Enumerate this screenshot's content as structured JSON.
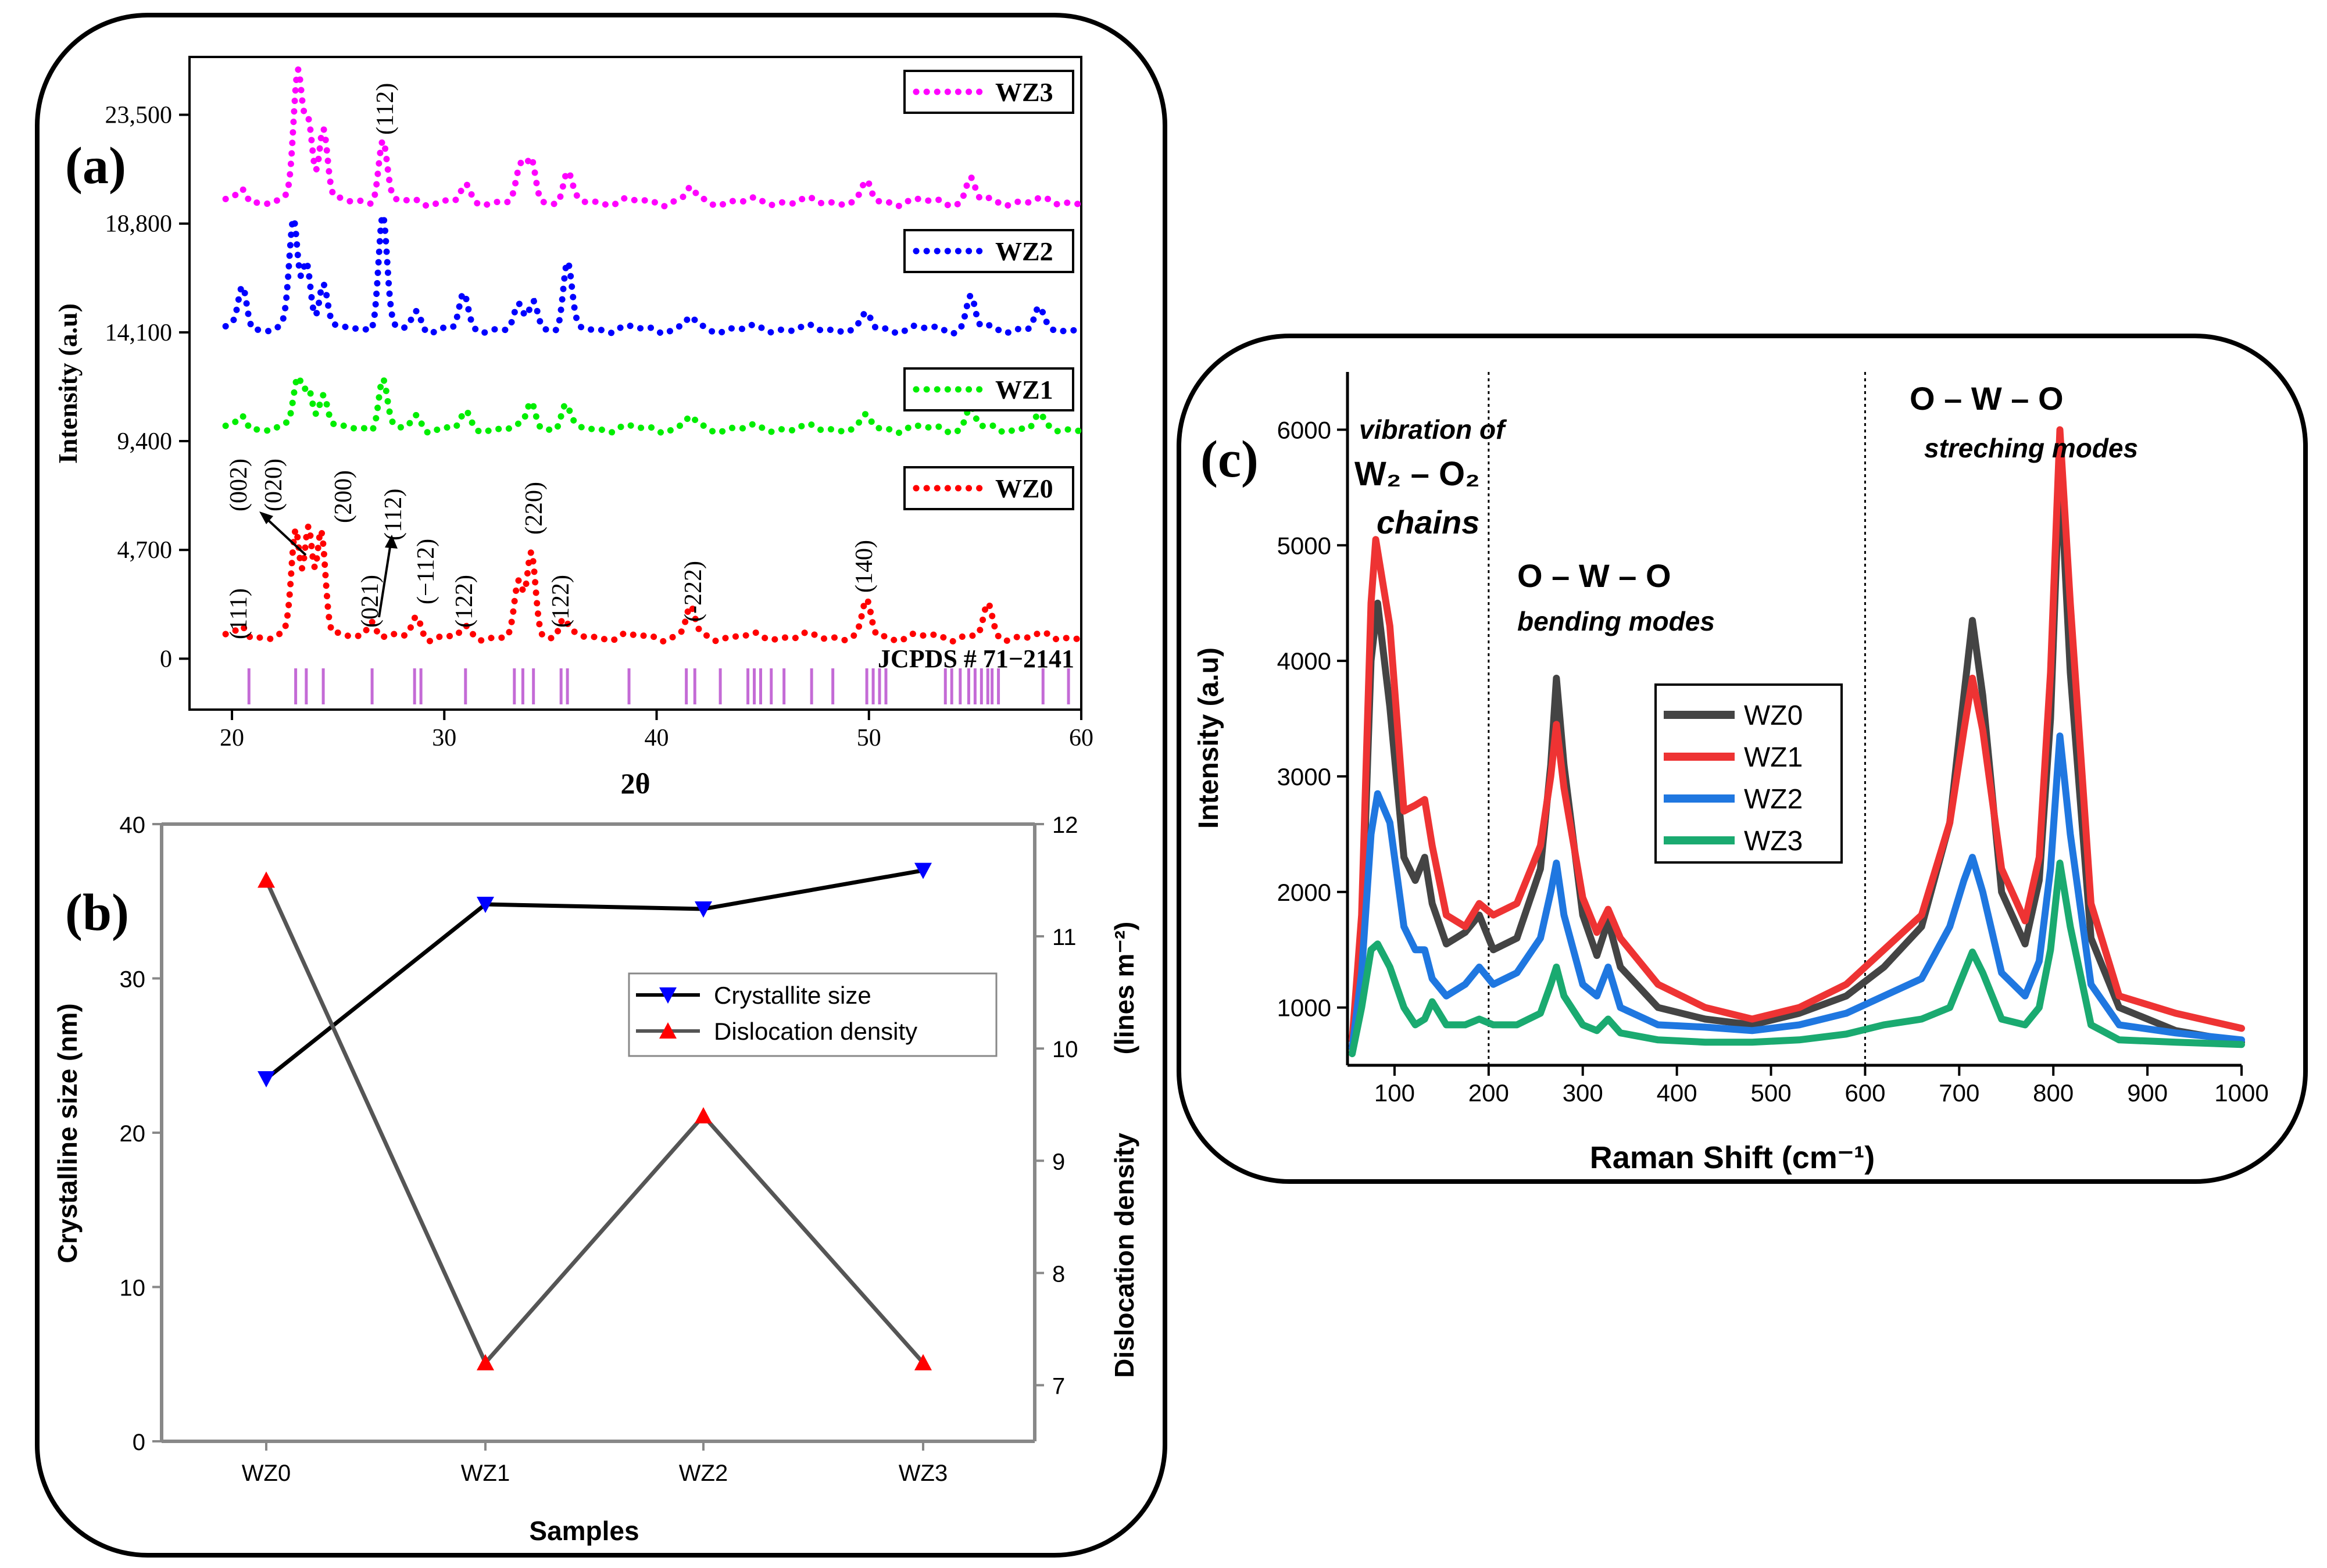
{
  "panels": {
    "a": {
      "label": "(a)",
      "ylabel": "Intensity (a.u)",
      "xlabel": "2θ",
      "reference_label": "JCPDS # 71−2141",
      "x_ticks": [
        20,
        30,
        40,
        50,
        60
      ],
      "y_ticks": [
        0,
        4700,
        9400,
        14100,
        18800,
        23500
      ],
      "y_tick_labels": [
        "0",
        "4,700",
        "9,400",
        "14,100",
        "18,800",
        "23,500"
      ],
      "legend": [
        {
          "name": "WZ3",
          "color": "#ff00ff"
        },
        {
          "name": "WZ2",
          "color": "#0000ff"
        },
        {
          "name": "WZ1",
          "color": "#00ee00"
        },
        {
          "name": "WZ0",
          "color": "#ff0000"
        }
      ],
      "peak_labels": [
        "(111)",
        "(002)",
        "(020)",
        "(200)",
        "(021)",
        "(112)",
        "(−112)",
        "(122)",
        "(220)",
        "(122)",
        "(-222)",
        "(140)"
      ],
      "wz3_peak_label": "(112)"
    },
    "b": {
      "label": "(b)",
      "ylabel_left": "Crystalline size (nm)",
      "ylabel_right": "Dislocation density",
      "ylabel_right_unit": "(lines m⁻²)",
      "xlabel": "Samples",
      "left_ticks": [
        0,
        10,
        20,
        30,
        40
      ],
      "right_ticks": [
        7,
        8,
        9,
        10,
        11,
        12
      ],
      "legend": [
        {
          "name": "Crystallite size",
          "line": "#000000",
          "marker": "#0000ff"
        },
        {
          "name": "Dislocation density",
          "line": "#555555",
          "marker": "#ff0000"
        }
      ]
    },
    "c": {
      "label": "(c)",
      "ylabel": "Intensity (a.u)",
      "xlabel": "Raman Shift (cm⁻¹)",
      "x_ticks": [
        100,
        200,
        300,
        400,
        500,
        600,
        700,
        800,
        900,
        1000
      ],
      "y_ticks": [
        1000,
        2000,
        3000,
        4000,
        5000,
        6000
      ],
      "legend": [
        {
          "name": "WZ0",
          "color": "#444444"
        },
        {
          "name": "WZ1",
          "color": "#ee3333"
        },
        {
          "name": "WZ2",
          "color": "#1f77e0"
        },
        {
          "name": "WZ3",
          "color": "#1aaa70"
        }
      ],
      "annotations": {
        "vib_line1": "vibration of",
        "vib_line2": "W₂ – O₂",
        "vib_line3": "chains",
        "bend_title": "O – W – O",
        "bend_sub": "bending modes",
        "str_title": "O – W – O",
        "str_sub": "streching modes"
      },
      "dividers": [
        200,
        600
      ]
    }
  },
  "chart_data": [
    {
      "type": "line",
      "panel": "a",
      "xlabel": "2θ",
      "ylabel": "Intensity (a.u)",
      "xlim": [
        18,
        60
      ],
      "ylim": [
        -2200,
        26000
      ],
      "series": [
        {
          "name": "WZ0",
          "offset": 0,
          "peaks": [
            [
              20.5,
              500
            ],
            [
              23.0,
              4600
            ],
            [
              23.6,
              4700
            ],
            [
              24.2,
              4700
            ],
            [
              26.6,
              800
            ],
            [
              28.7,
              800
            ],
            [
              31.0,
              300
            ],
            [
              33.5,
              2200
            ],
            [
              34.1,
              3700
            ],
            [
              35.6,
              800
            ],
            [
              41.6,
              1300
            ],
            [
              49.9,
              1500
            ],
            [
              55.6,
              1300
            ]
          ]
        },
        {
          "name": "WZ1",
          "offset": 9000,
          "peaks": [
            [
              20.5,
              600
            ],
            [
              23.1,
              2200
            ],
            [
              23.6,
              1700
            ],
            [
              24.3,
              1600
            ],
            [
              27.1,
              2200
            ],
            [
              28.7,
              500
            ],
            [
              31.0,
              600
            ],
            [
              34.1,
              1200
            ],
            [
              35.7,
              1000
            ],
            [
              41.6,
              500
            ],
            [
              49.9,
              500
            ],
            [
              54.8,
              900
            ],
            [
              58.0,
              500
            ]
          ]
        },
        {
          "name": "WZ2",
          "offset": 13300,
          "peaks": [
            [
              20.5,
              1900
            ],
            [
              22.9,
              4700
            ],
            [
              23.5,
              2900
            ],
            [
              24.3,
              2100
            ],
            [
              27.1,
              5000
            ],
            [
              28.7,
              700
            ],
            [
              30.9,
              1400
            ],
            [
              33.5,
              900
            ],
            [
              34.2,
              1300
            ],
            [
              35.8,
              2800
            ],
            [
              41.6,
              500
            ],
            [
              49.9,
              600
            ],
            [
              54.8,
              1400
            ],
            [
              58.0,
              800
            ]
          ]
        },
        {
          "name": "WZ3",
          "offset": 18800,
          "peaks": [
            [
              20.5,
              600
            ],
            [
              23.1,
              5600
            ],
            [
              23.6,
              3400
            ],
            [
              24.3,
              3300
            ],
            [
              27.1,
              2700
            ],
            [
              31.0,
              600
            ],
            [
              33.6,
              1400
            ],
            [
              34.1,
              1900
            ],
            [
              35.8,
              1200
            ],
            [
              41.6,
              600
            ],
            [
              49.9,
              800
            ],
            [
              54.8,
              1000
            ]
          ]
        }
      ],
      "reference_lines": [
        20.8,
        23.0,
        23.5,
        24.3,
        26.6,
        28.6,
        28.9,
        31.0,
        33.3,
        33.7,
        34.2,
        35.5,
        35.8,
        38.7,
        41.4,
        41.8,
        43.0,
        44.3,
        44.6,
        44.9,
        45.4,
        46.0,
        47.3,
        48.3,
        49.9,
        50.2,
        50.5,
        50.8,
        53.6,
        53.9,
        54.3,
        54.7,
        55.0,
        55.3,
        55.6,
        55.8,
        56.1,
        58.2,
        59.4
      ]
    },
    {
      "type": "line",
      "panel": "b",
      "categories": [
        "WZ0",
        "WZ1",
        "WZ2",
        "WZ3"
      ],
      "xlabel": "Samples",
      "ylabel": "Crystalline size (nm)",
      "ylim": [
        0,
        40
      ],
      "y2label": "Dislocation density (lines m⁻²)",
      "y2lim": [
        6.5,
        12
      ],
      "series": [
        {
          "name": "Crystallite size",
          "axis": "left",
          "values": [
            23.5,
            34.8,
            34.5,
            37.0
          ]
        },
        {
          "name": "Dislocation density",
          "axis": "right",
          "values": [
            11.5,
            7.2,
            9.4,
            7.2
          ]
        }
      ]
    },
    {
      "type": "line",
      "panel": "c",
      "xlabel": "Raman Shift (cm⁻¹)",
      "ylabel": "Intensity (a.u)",
      "xlim": [
        50,
        1000
      ],
      "ylim": [
        500,
        6500
      ],
      "series": [
        {
          "name": "WZ0",
          "x": [
            55,
            65,
            75,
            82,
            95,
            110,
            122,
            132,
            140,
            155,
            175,
            190,
            205,
            230,
            255,
            266,
            272,
            280,
            300,
            315,
            327,
            340,
            380,
            430,
            480,
            530,
            580,
            620,
            660,
            690,
            705,
            714,
            725,
            745,
            770,
            785,
            797,
            807,
            818,
            840,
            870,
            930,
            1000
          ],
          "y": [
            720,
            1600,
            4000,
            4500,
            3600,
            2300,
            2100,
            2300,
            1900,
            1550,
            1650,
            1800,
            1500,
            1600,
            2200,
            3100,
            3850,
            3100,
            1800,
            1450,
            1750,
            1350,
            1000,
            900,
            850,
            950,
            1100,
            1350,
            1700,
            2600,
            3700,
            4350,
            3700,
            2000,
            1550,
            2100,
            3500,
            5700,
            3900,
            1600,
            1000,
            800,
            700
          ]
        },
        {
          "name": "WZ1",
          "x": [
            55,
            65,
            75,
            80,
            95,
            110,
            122,
            132,
            140,
            155,
            175,
            190,
            205,
            230,
            255,
            266,
            272,
            280,
            300,
            315,
            327,
            340,
            380,
            430,
            480,
            530,
            580,
            620,
            660,
            690,
            705,
            714,
            725,
            745,
            770,
            785,
            797,
            807,
            818,
            840,
            870,
            930,
            1000
          ],
          "y": [
            720,
            1800,
            4500,
            5050,
            4300,
            2700,
            2750,
            2800,
            2400,
            1800,
            1700,
            1900,
            1800,
            1900,
            2400,
            3000,
            3450,
            2900,
            1950,
            1650,
            1850,
            1600,
            1200,
            1000,
            900,
            1000,
            1200,
            1500,
            1800,
            2600,
            3400,
            3850,
            3400,
            2200,
            1750,
            2300,
            3900,
            6000,
            4500,
            1900,
            1100,
            950,
            820
          ]
        },
        {
          "name": "WZ2",
          "x": [
            55,
            65,
            75,
            82,
            95,
            110,
            122,
            132,
            140,
            155,
            175,
            190,
            205,
            230,
            255,
            266,
            272,
            280,
            300,
            315,
            327,
            340,
            380,
            430,
            480,
            530,
            580,
            620,
            660,
            690,
            705,
            714,
            725,
            745,
            770,
            785,
            797,
            807,
            818,
            840,
            870,
            930,
            1000
          ],
          "y": [
            650,
            1300,
            2500,
            2850,
            2600,
            1700,
            1500,
            1500,
            1250,
            1100,
            1200,
            1350,
            1200,
            1300,
            1600,
            2000,
            2250,
            1800,
            1200,
            1100,
            1350,
            1000,
            850,
            830,
            800,
            850,
            950,
            1100,
            1250,
            1700,
            2100,
            2300,
            2000,
            1300,
            1100,
            1400,
            2200,
            3350,
            2500,
            1200,
            850,
            780,
            720
          ]
        },
        {
          "name": "WZ3",
          "x": [
            55,
            65,
            75,
            82,
            95,
            110,
            122,
            132,
            140,
            155,
            175,
            190,
            205,
            230,
            255,
            266,
            272,
            280,
            300,
            315,
            327,
            340,
            380,
            430,
            480,
            530,
            580,
            620,
            660,
            690,
            705,
            714,
            725,
            745,
            770,
            785,
            797,
            807,
            818,
            840,
            870,
            930,
            1000
          ],
          "y": [
            600,
            1000,
            1500,
            1550,
            1350,
            1000,
            850,
            900,
            1050,
            850,
            850,
            900,
            850,
            850,
            950,
            1200,
            1350,
            1100,
            850,
            800,
            900,
            780,
            720,
            700,
            700,
            720,
            770,
            850,
            900,
            1000,
            1300,
            1480,
            1300,
            900,
            850,
            1000,
            1500,
            2250,
            1700,
            850,
            720,
            700,
            680
          ]
        }
      ]
    }
  ]
}
